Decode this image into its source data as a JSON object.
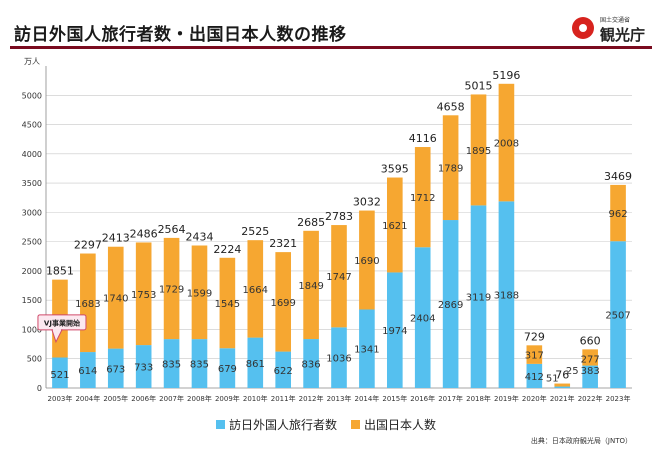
{
  "header": {
    "title": "訪日外国人旅行者数・出国日本人数の推移",
    "logo_small": "国土交通省",
    "logo_name": "観光庁"
  },
  "colors": {
    "inbound": "#55c0ef",
    "outbound": "#f6a731",
    "title_rule": "#7a0b1f",
    "callout_fill": "#fce8ef",
    "callout_border": "#d04a6a"
  },
  "chart_data": {
    "type": "bar",
    "stacked": true,
    "title": "訪日外国人旅行者数・出国日本人数の推移",
    "ylabel": "万人",
    "ylim": [
      0,
      5500
    ],
    "yticks": [
      0,
      500,
      1000,
      1500,
      2000,
      2500,
      3000,
      3500,
      4000,
      4500,
      5000
    ],
    "categories": [
      "2003年",
      "2004年",
      "2005年",
      "2006年",
      "2007年",
      "2008年",
      "2009年",
      "2010年",
      "2011年",
      "2012年",
      "2013年",
      "2014年",
      "2015年",
      "2016年",
      "2017年",
      "2018年",
      "2019年",
      "2020年",
      "2021年",
      "2022年",
      "2023年"
    ],
    "series": [
      {
        "name": "訪日外国人旅行者数",
        "values": [
          521,
          614,
          673,
          733,
          835,
          835,
          679,
          861,
          622,
          836,
          1036,
          1341,
          1974,
          2404,
          2869,
          3119,
          3188,
          412,
          25,
          383,
          2507
        ]
      },
      {
        "name": "出国日本人数",
        "values": [
          1330,
          1683,
          1740,
          1753,
          1729,
          1599,
          1545,
          1664,
          1699,
          1849,
          1747,
          1690,
          1621,
          1712,
          1789,
          1895,
          2008,
          317,
          51,
          277,
          962
        ]
      }
    ],
    "totals": [
      1851,
      2297,
      2413,
      2486,
      2564,
      2434,
      2224,
      2525,
      2321,
      2685,
      2783,
      3032,
      3595,
      4116,
      4658,
      5015,
      5196,
      729,
      76,
      660,
      3469
    ],
    "annotation": {
      "text": "VJ事業開始",
      "category": "2003年"
    },
    "legend_position": "bottom"
  },
  "legend": {
    "inbound_label": "訪日外国人旅行者数",
    "outbound_label": "出国日本人数"
  },
  "source": "出典：日本政府観光局（JNTO）"
}
